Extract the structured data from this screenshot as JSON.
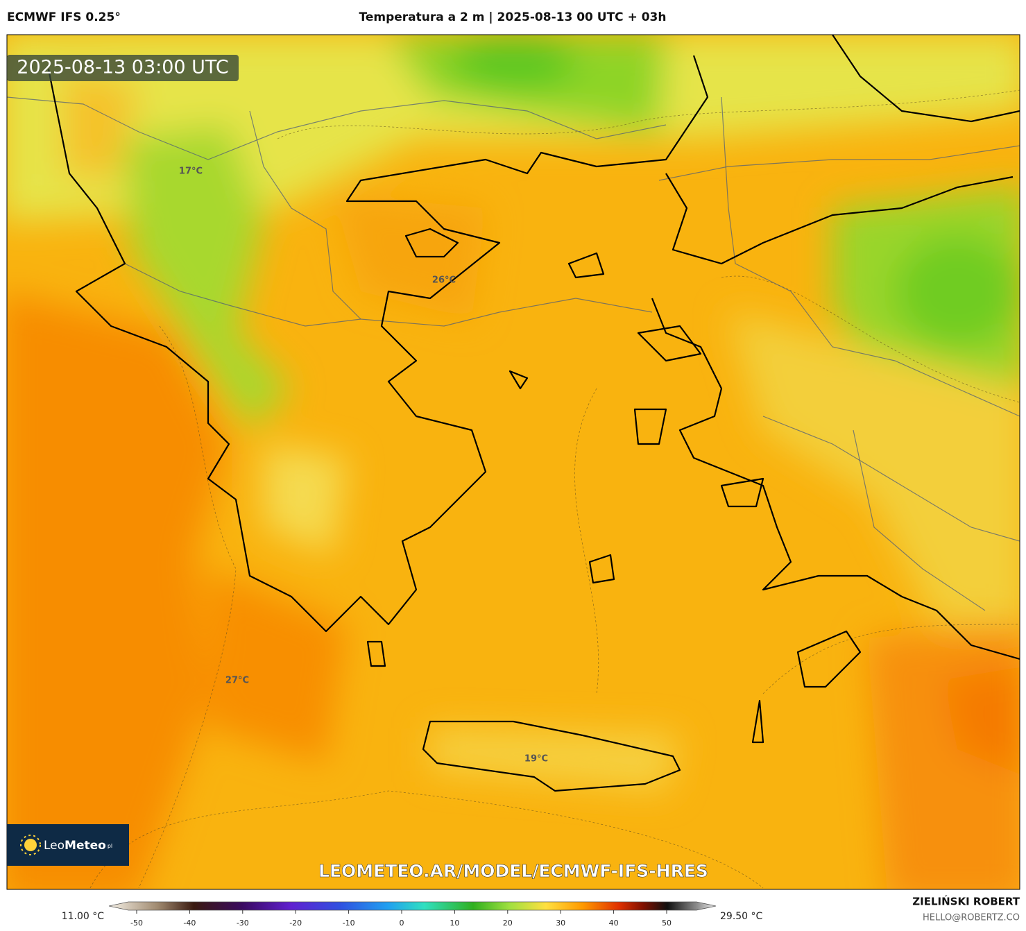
{
  "header": {
    "model": "ECMWF IFS 0.25°",
    "title": "Temperatura a 2 m | 2025-08-13 00 UTC + 03h"
  },
  "map": {
    "timestamp": "2025-08-13 03:00 UTC",
    "labels": [
      "17°C",
      "26°C",
      "27°C",
      "19°C"
    ],
    "logo": {
      "name": "Leo",
      "name_bold": "Meteo",
      "suffix": "pl"
    },
    "watermark": "LEOMETEO.AR/MODEL/ECMWF-IFS-HRES"
  },
  "colorbar": {
    "min_label": "11.00 °C",
    "max_label": "29.50 °C",
    "ticks": [
      -50,
      -40,
      -30,
      -20,
      -10,
      0,
      10,
      20,
      30,
      40,
      50
    ]
  },
  "footer": {
    "author": "ZIELIŃSKI ROBERT",
    "email": "HELLO@ROBERTZ.CO"
  }
}
